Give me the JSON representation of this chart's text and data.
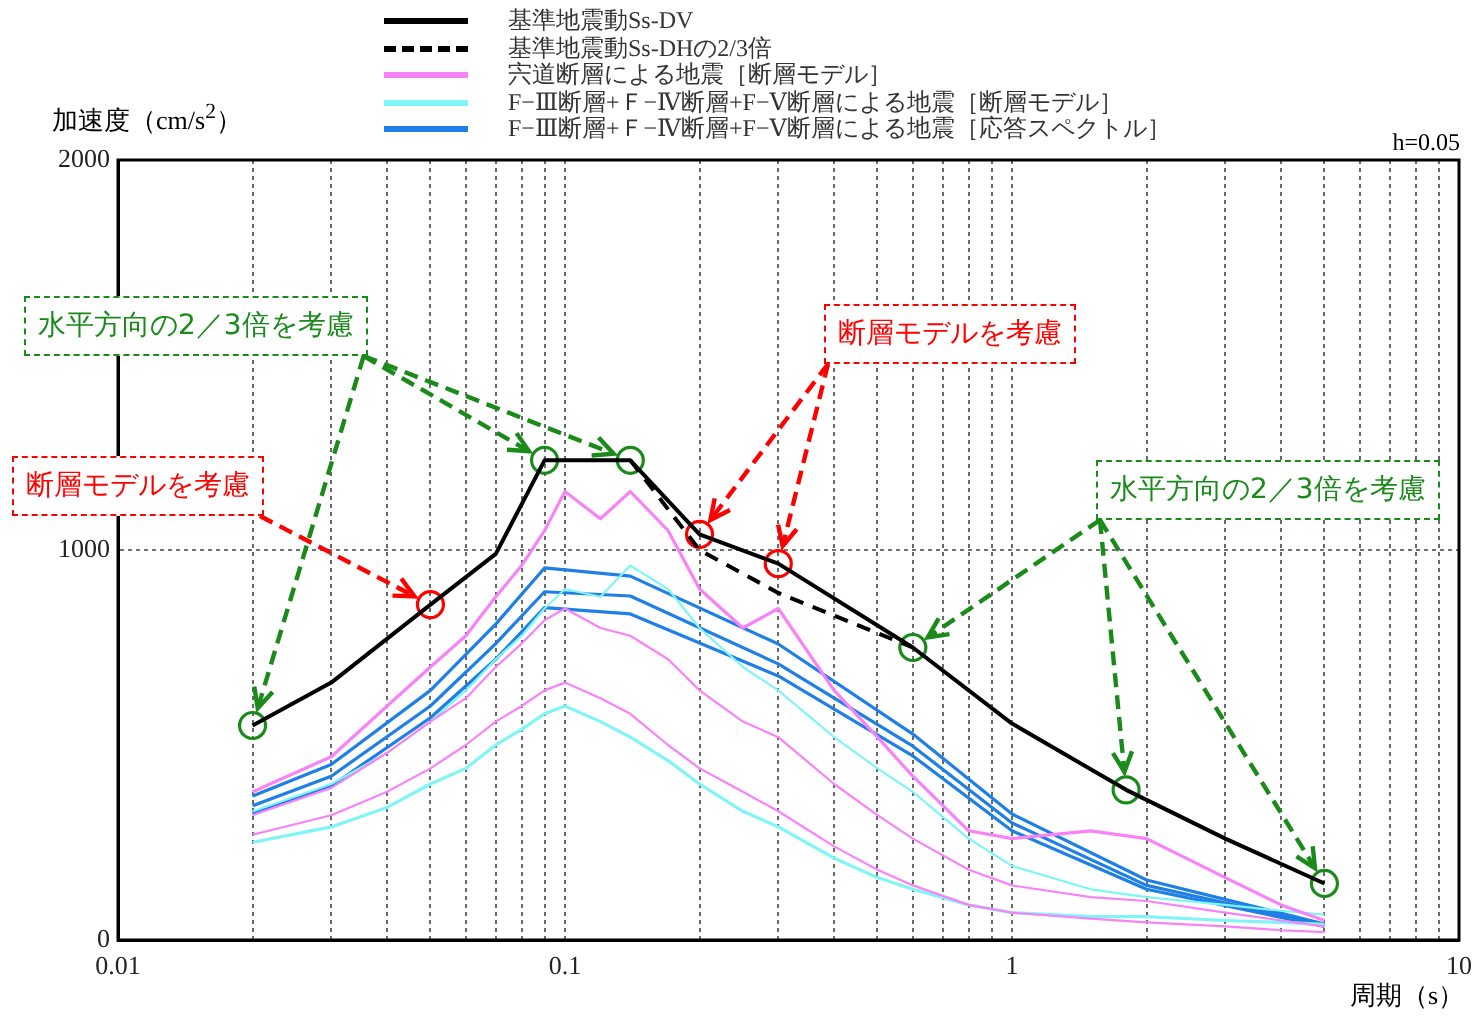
{
  "chart_data": {
    "type": "line",
    "ylabel": "加速度（cm/s$^{2}$）",
    "xlabel": "周期（s）",
    "log": "x",
    "grid": true,
    "legend": "top",
    "marker": "none",
    "xlim": [
      0.01,
      10
    ],
    "ylim": [
      0,
      2000
    ],
    "xticks": [
      0.01,
      {
        "value": 0.02,
        "label": null
      },
      {
        "value": 0.03,
        "label": null
      },
      {
        "value": 0.04,
        "label": null
      },
      {
        "value": 0.05,
        "label": null
      },
      {
        "value": 0.06,
        "label": null
      },
      {
        "value": 0.07,
        "label": null
      },
      {
        "value": 0.08,
        "label": null
      },
      {
        "value": 0.09,
        "label": null
      },
      0.1,
      {
        "value": 0.2,
        "label": null
      },
      {
        "value": 0.3,
        "label": null
      },
      {
        "value": 0.4,
        "label": null
      },
      {
        "value": 0.5,
        "label": null
      },
      {
        "value": 0.6,
        "label": null
      },
      {
        "value": 0.7,
        "label": null
      },
      {
        "value": 0.8,
        "label": null
      },
      {
        "value": 0.9,
        "label": null
      },
      1,
      {
        "value": 2,
        "label": null
      },
      {
        "value": 3,
        "label": null
      },
      {
        "value": 4,
        "label": null
      },
      {
        "value": 5,
        "label": null
      },
      {
        "value": 6,
        "label": null
      },
      {
        "value": 7,
        "label": null
      },
      {
        "value": 8,
        "label": null
      },
      {
        "value": 9,
        "label": null
      },
      10
    ],
    "yticks": [
      0,
      1000,
      2000
    ],
    "annotations": [
      {
        "text": "水平方向の2／3倍を考慮",
        "x": 0.14,
        "y": 1230
      },
      {
        "text": "断層モデルを考慮",
        "x": 0.05,
        "y": 860
      },
      {
        "text": "断層モデルを考慮",
        "x": 0.2,
        "y": 1040
      },
      {
        "text": "水平方向の2／3倍を考慮",
        "x": 0.6,
        "y": 750
      },
      "h=0.05"
    ],
    "series": [
      {
        "name": "基準地震動Ss-DV",
        "color": "#000000",
        "line_style": "solid",
        "x": [
          0.02,
          0.03,
          0.05,
          0.07,
          0.09,
          0.14,
          0.2,
          0.3,
          0.6,
          1,
          1.8,
          3,
          5
        ],
        "values": [
          550,
          660,
          860,
          990,
          1230,
          1230,
          1040,
          965,
          750,
          555,
          385,
          260,
          145
        ]
      },
      {
        "name": "基準地震動Ss-DHの2/3倍",
        "color": "#000000",
        "line_style": "dashed",
        "x": [
          0.14,
          0.2,
          0.3,
          0.6
        ],
        "values": [
          1230,
          1000,
          890,
          750
        ]
      },
      {
        "name": "宍道断層による地震［断層モデル］",
        "color": "#f882f8",
        "line_style": "solid",
        "x": [
          0.02,
          0.03,
          0.04,
          0.05,
          0.06,
          0.07,
          0.08,
          0.09,
          0.1,
          0.12,
          0.14,
          0.17,
          0.2,
          0.25,
          0.3,
          0.4,
          0.5,
          0.6,
          0.8,
          1,
          1.5,
          2,
          3,
          4,
          5
        ],
        "values": [
          380,
          470,
          600,
          700,
          780,
          880,
          960,
          1050,
          1150,
          1080,
          1150,
          1050,
          900,
          800,
          850,
          640,
          520,
          420,
          280,
          260,
          280,
          260,
          160,
          90,
          50
        ]
      },
      {
        "color": "#f882f8",
        "line_style": "solid",
        "x": [
          0.02,
          0.03,
          0.04,
          0.05,
          0.06,
          0.07,
          0.08,
          0.09,
          0.1,
          0.12,
          0.14,
          0.17,
          0.2,
          0.25,
          0.3,
          0.4,
          0.5,
          0.6,
          0.8,
          1,
          1.5,
          2,
          3,
          4,
          5
        ],
        "values": [
          320,
          390,
          480,
          560,
          620,
          700,
          760,
          820,
          850,
          800,
          780,
          720,
          640,
          560,
          520,
          400,
          320,
          260,
          180,
          140,
          110,
          100,
          70,
          50,
          35
        ]
      },
      {
        "color": "#f882f8",
        "line_style": "solid",
        "x": [
          0.02,
          0.03,
          0.04,
          0.05,
          0.06,
          0.07,
          0.08,
          0.09,
          0.1,
          0.12,
          0.14,
          0.17,
          0.2,
          0.25,
          0.3,
          0.4,
          0.5,
          0.6,
          0.8,
          1,
          1.5,
          2,
          3,
          4,
          5
        ],
        "values": [
          270,
          320,
          380,
          440,
          500,
          560,
          600,
          640,
          660,
          620,
          580,
          500,
          440,
          380,
          330,
          240,
          180,
          140,
          90,
          70,
          55,
          45,
          35,
          25,
          20
        ]
      },
      {
        "name": "F−Ⅲ断層+Ｆ−Ⅳ断層+F−Ⅴ断層による地震［断層モデル］",
        "color": "#7ff5f5",
        "line_style": "solid",
        "x": [
          0.02,
          0.03,
          0.04,
          0.05,
          0.06,
          0.07,
          0.08,
          0.09,
          0.1,
          0.12,
          0.14,
          0.17,
          0.2,
          0.25,
          0.3,
          0.4,
          0.5,
          0.6,
          0.8,
          1,
          1.5,
          2,
          3,
          4,
          5
        ],
        "values": [
          250,
          290,
          340,
          400,
          440,
          500,
          540,
          580,
          600,
          560,
          520,
          460,
          400,
          330,
          290,
          210,
          160,
          130,
          90,
          70,
          60,
          60,
          50,
          45,
          40
        ]
      },
      {
        "color": "#7ff5f5",
        "line_style": "solid",
        "x": [
          0.02,
          0.03,
          0.04,
          0.05,
          0.06,
          0.07,
          0.08,
          0.09,
          0.1,
          0.12,
          0.14,
          0.17,
          0.2,
          0.25,
          0.3,
          0.4,
          0.5,
          0.6,
          0.8,
          1,
          1.5,
          2,
          3,
          4,
          5
        ],
        "values": [
          330,
          400,
          480,
          560,
          640,
          720,
          780,
          850,
          900,
          880,
          960,
          900,
          800,
          700,
          640,
          520,
          440,
          380,
          260,
          190,
          130,
          110,
          90,
          75,
          65
        ]
      },
      {
        "name": "F−Ⅲ断層+Ｆ−Ⅳ断層+F−Ⅴ断層による地震［応答スペクトル］",
        "color": "#1e7fe6",
        "line_style": "solid",
        "x": [
          0.02,
          0.03,
          0.05,
          0.07,
          0.09,
          0.14,
          0.3,
          0.6,
          1,
          2,
          5
        ],
        "values": [
          369,
          450,
          640,
          810,
          954,
          933,
          759,
          528,
          323,
          154,
          41
        ]
      },
      {
        "color": "#1e7fe6",
        "line_style": "solid",
        "x": [
          0.02,
          0.03,
          0.05,
          0.07,
          0.09,
          0.14,
          0.3,
          0.6,
          1,
          2,
          5
        ],
        "values": [
          344,
          420,
          600,
          760,
          893,
          882,
          708,
          497,
          300,
          140,
          38
        ]
      },
      {
        "color": "#1e7fe6",
        "line_style": "solid",
        "x": [
          0.02,
          0.03,
          0.05,
          0.07,
          0.09,
          0.14,
          0.3,
          0.6,
          1,
          2,
          5
        ],
        "values": [
          323,
          395,
          570,
          720,
          852,
          836,
          677,
          472,
          280,
          130,
          35
        ]
      },
      {
        "type": "scatter",
        "marker": "circle",
        "color": "#1a8a1a",
        "x": [
          0.02,
          0.09,
          0.14
        ],
        "values": [
          550,
          1230,
          1230
        ]
      },
      {
        "type": "scatter",
        "marker": "circle",
        "color": "#ff0000",
        "x": [
          0.05
        ],
        "values": [
          860
        ]
      },
      {
        "type": "scatter",
        "marker": "circle",
        "color": "#ff0000",
        "x": [
          0.2,
          0.3
        ],
        "values": [
          1040,
          965
        ]
      },
      {
        "type": "scatter",
        "marker": "circle",
        "color": "#1a8a1a",
        "x": [
          0.6,
          1.8,
          5
        ],
        "values": [
          750,
          385,
          145
        ]
      }
    ]
  }
}
